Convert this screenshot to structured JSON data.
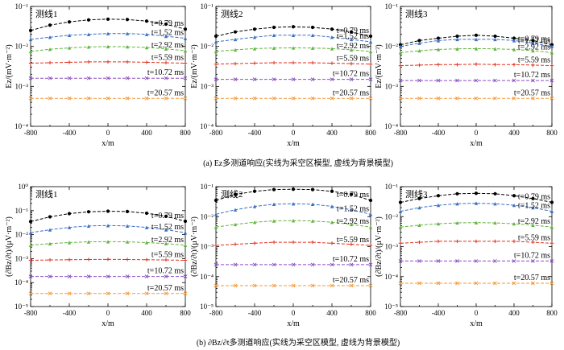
{
  "figure": {
    "caption_a": "(a) Ez多测道响应(实线为采空区模型, 虚线为背景模型)",
    "caption_b": "(b) ∂Bz/∂t多测道响应(实线为采空区模型, 虚线为背景模型)"
  },
  "chart_data": [
    {
      "type": "line",
      "row": "a",
      "panel_label": "测线1",
      "xlabel": "x/m",
      "ylabel": "Ez/(mV·m⁻²)",
      "xlim": [
        -800,
        800
      ],
      "ylim": [
        0.0001,
        0.1
      ],
      "yscale": "log",
      "xticks": [
        -800,
        -400,
        0,
        400,
        800
      ],
      "yticks": [
        0.0001,
        0.001,
        0.01,
        0.1
      ],
      "ytick_labels": [
        "10⁻⁴",
        "10⁻³",
        "10⁻²",
        "10⁻¹"
      ],
      "x": [
        -800,
        -600,
        -400,
        -200,
        0,
        200,
        400,
        600,
        800
      ],
      "series": [
        {
          "name": "t=0.79 ms",
          "color": "#000000",
          "marker": "circle",
          "values": [
            0.025,
            0.034,
            0.041,
            0.046,
            0.048,
            0.047,
            0.043,
            0.036,
            0.027
          ]
        },
        {
          "name": "t=1.52 ms",
          "color": "#3a6fc4",
          "marker": "triangle",
          "values": [
            0.015,
            0.017,
            0.019,
            0.02,
            0.021,
            0.021,
            0.02,
            0.018,
            0.016
          ]
        },
        {
          "name": "t=2.92 ms",
          "color": "#63b33e",
          "marker": "triangle",
          "values": [
            0.0075,
            0.0085,
            0.0092,
            0.0097,
            0.0099,
            0.0098,
            0.0094,
            0.0087,
            0.0078
          ]
        },
        {
          "name": "t=5.59 ms",
          "color": "#e0301e",
          "marker": "plus",
          "values": [
            0.0038,
            0.0039,
            0.004,
            0.0041,
            0.0041,
            0.0041,
            0.004,
            0.0039,
            0.0038
          ]
        },
        {
          "name": "t=10.72 ms",
          "color": "#8a4ec2",
          "marker": "cross",
          "values": [
            0.0016,
            0.0016,
            0.0016,
            0.0016,
            0.0016,
            0.0016,
            0.0016,
            0.0016,
            0.0016
          ]
        },
        {
          "name": "t=20.57 ms",
          "color": "#f39a3c",
          "marker": "cross",
          "values": [
            0.0005,
            0.0005,
            0.0005,
            0.0005,
            0.0005,
            0.0005,
            0.0005,
            0.0005,
            0.0005
          ]
        }
      ]
    },
    {
      "type": "line",
      "row": "a",
      "panel_label": "测线2",
      "xlabel": "x/m",
      "ylabel": "Ez/(mV·m⁻²)",
      "xlim": [
        -800,
        800
      ],
      "ylim": [
        0.0001,
        0.1
      ],
      "yscale": "log",
      "xticks": [
        -800,
        -400,
        0,
        400,
        800
      ],
      "yticks": [
        0.0001,
        0.001,
        0.01,
        0.1
      ],
      "ytick_labels": [
        "10⁻⁴",
        "10⁻³",
        "10⁻²",
        "10⁻¹"
      ],
      "x": [
        -800,
        -600,
        -400,
        -200,
        0,
        200,
        400,
        600,
        800
      ],
      "series": [
        {
          "name": "t=0.79 ms",
          "color": "#000000",
          "marker": "circle",
          "values": [
            0.018,
            0.023,
            0.027,
            0.03,
            0.031,
            0.03,
            0.027,
            0.023,
            0.018
          ]
        },
        {
          "name": "t=1.52 ms",
          "color": "#3a6fc4",
          "marker": "triangle",
          "values": [
            0.013,
            0.015,
            0.017,
            0.019,
            0.019,
            0.019,
            0.017,
            0.015,
            0.013
          ]
        },
        {
          "name": "t=2.92 ms",
          "color": "#63b33e",
          "marker": "triangle",
          "values": [
            0.0075,
            0.0082,
            0.0088,
            0.0091,
            0.0092,
            0.0091,
            0.0088,
            0.0082,
            0.0075
          ]
        },
        {
          "name": "t=5.59 ms",
          "color": "#e0301e",
          "marker": "plus",
          "values": [
            0.0036,
            0.0037,
            0.0038,
            0.0039,
            0.0039,
            0.0039,
            0.0038,
            0.0037,
            0.0036
          ]
        },
        {
          "name": "t=10.72 ms",
          "color": "#8a4ec2",
          "marker": "cross",
          "values": [
            0.0015,
            0.0015,
            0.0015,
            0.0015,
            0.0015,
            0.0015,
            0.0015,
            0.0015,
            0.0015
          ]
        },
        {
          "name": "t=20.57 ms",
          "color": "#f39a3c",
          "marker": "cross",
          "values": [
            0.0005,
            0.0005,
            0.0005,
            0.0005,
            0.0005,
            0.0005,
            0.0005,
            0.0005,
            0.0005
          ]
        }
      ]
    },
    {
      "type": "line",
      "row": "a",
      "panel_label": "测线3",
      "xlabel": "x/m",
      "ylabel": "Ez/(mV·m⁻²)",
      "xlim": [
        -800,
        800
      ],
      "ylim": [
        0.0001,
        0.1
      ],
      "yscale": "log",
      "xticks": [
        -800,
        -400,
        0,
        400,
        800
      ],
      "yticks": [
        0.0001,
        0.001,
        0.01,
        0.1
      ],
      "ytick_labels": [
        "10⁻⁴",
        "10⁻³",
        "10⁻²",
        "10⁻¹"
      ],
      "x": [
        -800,
        -600,
        -400,
        -200,
        0,
        200,
        400,
        600,
        800
      ],
      "series": [
        {
          "name": "t=0.79 ms",
          "color": "#000000",
          "marker": "circle",
          "values": [
            0.011,
            0.014,
            0.016,
            0.018,
            0.019,
            0.018,
            0.016,
            0.014,
            0.011
          ]
        },
        {
          "name": "t=1.52 ms",
          "color": "#3a6fc4",
          "marker": "triangle",
          "values": [
            0.01,
            0.012,
            0.014,
            0.015,
            0.015,
            0.015,
            0.014,
            0.012,
            0.01
          ]
        },
        {
          "name": "t=2.92 ms",
          "color": "#63b33e",
          "marker": "triangle",
          "values": [
            0.007,
            0.0078,
            0.0084,
            0.0087,
            0.0088,
            0.0087,
            0.0084,
            0.0078,
            0.007
          ]
        },
        {
          "name": "t=5.59 ms",
          "color": "#e0301e",
          "marker": "plus",
          "values": [
            0.0033,
            0.0034,
            0.0035,
            0.0035,
            0.0036,
            0.0035,
            0.0035,
            0.0034,
            0.0033
          ]
        },
        {
          "name": "t=10.72 ms",
          "color": "#8a4ec2",
          "marker": "cross",
          "values": [
            0.0014,
            0.0014,
            0.0014,
            0.0014,
            0.0014,
            0.0014,
            0.0014,
            0.0014,
            0.0014
          ]
        },
        {
          "name": "t=20.57 ms",
          "color": "#f39a3c",
          "marker": "cross",
          "values": [
            0.0005,
            0.0005,
            0.0005,
            0.0005,
            0.0005,
            0.0005,
            0.0005,
            0.0005,
            0.0005
          ]
        }
      ]
    },
    {
      "type": "line",
      "row": "b",
      "panel_label": "测线1",
      "xlabel": "x/m",
      "ylabel": "(∂Bz/∂t)/(μV·m⁻²)",
      "xlim": [
        -800,
        800
      ],
      "ylim": [
        1e-05,
        1
      ],
      "yscale": "log",
      "xticks": [
        -800,
        -400,
        0,
        400,
        800
      ],
      "yticks": [
        1e-05,
        0.0001,
        0.001,
        0.01,
        0.1,
        1
      ],
      "ytick_labels": [
        "10⁻⁵",
        "10⁻⁴",
        "10⁻³",
        "10⁻²",
        "10⁻¹",
        "10⁰"
      ],
      "x": [
        -800,
        -600,
        -400,
        -200,
        0,
        200,
        400,
        600,
        800
      ],
      "series": [
        {
          "name": "t=0.79 ms",
          "color": "#000000",
          "marker": "circle",
          "values": [
            0.035,
            0.055,
            0.075,
            0.09,
            0.095,
            0.092,
            0.078,
            0.058,
            0.036
          ]
        },
        {
          "name": "t=1.52 ms",
          "color": "#3a6fc4",
          "marker": "triangle",
          "values": [
            0.012,
            0.016,
            0.02,
            0.023,
            0.024,
            0.023,
            0.02,
            0.016,
            0.012
          ]
        },
        {
          "name": "t=2.92 ms",
          "color": "#63b33e",
          "marker": "triangle",
          "values": [
            0.0036,
            0.0042,
            0.0047,
            0.005,
            0.0051,
            0.005,
            0.0047,
            0.0042,
            0.0036
          ]
        },
        {
          "name": "t=5.59 ms",
          "color": "#e0301e",
          "marker": "plus",
          "values": [
            0.00085,
            0.00088,
            0.0009,
            0.00092,
            0.00093,
            0.00092,
            0.0009,
            0.00088,
            0.00085
          ]
        },
        {
          "name": "t=10.72 ms",
          "color": "#8a4ec2",
          "marker": "cross",
          "values": [
            0.00018,
            0.00018,
            0.00018,
            0.00018,
            0.00018,
            0.00018,
            0.00018,
            0.00018,
            0.00018
          ]
        },
        {
          "name": "t=20.57 ms",
          "color": "#f39a3c",
          "marker": "cross",
          "values": [
            3.5e-05,
            3.5e-05,
            3.5e-05,
            3.5e-05,
            3.5e-05,
            3.5e-05,
            3.5e-05,
            3.5e-05,
            3.5e-05
          ]
        }
      ]
    },
    {
      "type": "line",
      "row": "b",
      "panel_label": "测线2",
      "xlabel": "x/m",
      "ylabel": "(∂Bz/∂t)/(μV·m⁻²)",
      "xlim": [
        -800,
        800
      ],
      "ylim": [
        1e-05,
        0.1
      ],
      "yscale": "log",
      "xticks": [
        -800,
        -400,
        0,
        400,
        800
      ],
      "yticks": [
        1e-05,
        0.0001,
        0.001,
        0.01,
        0.1
      ],
      "ytick_labels": [
        "10⁻⁵",
        "10⁻⁴",
        "10⁻³",
        "10⁻²",
        "10⁻¹"
      ],
      "x": [
        -800,
        -600,
        -400,
        -200,
        0,
        200,
        400,
        600,
        800
      ],
      "series": [
        {
          "name": "t=0.79 ms",
          "color": "#000000",
          "marker": "circle",
          "values": [
            0.035,
            0.055,
            0.07,
            0.08,
            0.082,
            0.08,
            0.07,
            0.055,
            0.035
          ]
        },
        {
          "name": "t=1.52 ms",
          "color": "#3a6fc4",
          "marker": "triangle",
          "values": [
            0.012,
            0.017,
            0.022,
            0.026,
            0.027,
            0.026,
            0.022,
            0.017,
            0.012
          ]
        },
        {
          "name": "t=2.92 ms",
          "color": "#63b33e",
          "marker": "triangle",
          "values": [
            0.0045,
            0.0055,
            0.0065,
            0.0072,
            0.0074,
            0.0072,
            0.0065,
            0.0055,
            0.0045
          ]
        },
        {
          "name": "t=5.59 ms",
          "color": "#e0301e",
          "marker": "plus",
          "values": [
            0.0011,
            0.0012,
            0.0013,
            0.0014,
            0.0014,
            0.0014,
            0.0013,
            0.0012,
            0.0011
          ]
        },
        {
          "name": "t=10.72 ms",
          "color": "#8a4ec2",
          "marker": "cross",
          "values": [
            0.00025,
            0.00025,
            0.00025,
            0.00025,
            0.00025,
            0.00025,
            0.00025,
            0.00025,
            0.00025
          ]
        },
        {
          "name": "t=20.57 ms",
          "color": "#f39a3c",
          "marker": "cross",
          "values": [
            5e-05,
            5e-05,
            5e-05,
            5e-05,
            5e-05,
            5e-05,
            5e-05,
            5e-05,
            5e-05
          ]
        }
      ]
    },
    {
      "type": "line",
      "row": "b",
      "panel_label": "测线3",
      "xlabel": "x/m",
      "ylabel": "(∂Bz/∂t)/(μV·m⁻²)",
      "xlim": [
        -800,
        800
      ],
      "ylim": [
        1e-05,
        0.1
      ],
      "yscale": "log",
      "xticks": [
        -800,
        -400,
        0,
        400,
        800
      ],
      "yticks": [
        1e-05,
        0.0001,
        0.001,
        0.01,
        0.1
      ],
      "ytick_labels": [
        "10⁻⁵",
        "10⁻⁴",
        "10⁻³",
        "10⁻²",
        "10⁻¹"
      ],
      "x": [
        -800,
        -600,
        -400,
        -200,
        0,
        200,
        400,
        600,
        800
      ],
      "series": [
        {
          "name": "t=0.79 ms",
          "color": "#000000",
          "marker": "circle",
          "values": [
            0.03,
            0.04,
            0.05,
            0.058,
            0.06,
            0.058,
            0.05,
            0.04,
            0.03
          ]
        },
        {
          "name": "t=1.52 ms",
          "color": "#3a6fc4",
          "marker": "triangle",
          "values": [
            0.015,
            0.02,
            0.024,
            0.027,
            0.028,
            0.027,
            0.024,
            0.02,
            0.015
          ]
        },
        {
          "name": "t=2.92 ms",
          "color": "#63b33e",
          "marker": "triangle",
          "values": [
            0.0045,
            0.0052,
            0.0058,
            0.0062,
            0.0063,
            0.0062,
            0.0058,
            0.0052,
            0.0045
          ]
        },
        {
          "name": "t=5.59 ms",
          "color": "#e0301e",
          "marker": "plus",
          "values": [
            0.0013,
            0.0014,
            0.0015,
            0.0015,
            0.0015,
            0.0015,
            0.0015,
            0.0014,
            0.0013
          ]
        },
        {
          "name": "t=10.72 ms",
          "color": "#8a4ec2",
          "marker": "cross",
          "values": [
            0.00033,
            0.00033,
            0.00033,
            0.00033,
            0.00033,
            0.00033,
            0.00033,
            0.00033,
            0.00033
          ]
        },
        {
          "name": "t=20.57 ms",
          "color": "#f39a3c",
          "marker": "cross",
          "values": [
            6e-05,
            6e-05,
            6e-05,
            6e-05,
            6e-05,
            6e-05,
            6e-05,
            6e-05,
            6e-05
          ]
        }
      ]
    }
  ]
}
